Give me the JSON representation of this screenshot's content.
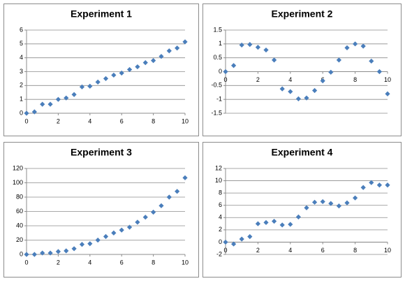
{
  "chart_data": [
    {
      "type": "scatter",
      "title": "Experiment 1",
      "color": "#4a7ebb",
      "grid": true,
      "x": [
        0,
        0.5,
        1,
        1.5,
        2,
        2.5,
        3,
        3.5,
        4,
        4.5,
        5,
        5.5,
        6,
        6.5,
        7,
        7.5,
        8,
        8.5,
        9,
        9.5,
        10
      ],
      "values": [
        0,
        0.1,
        0.65,
        0.65,
        1.0,
        1.1,
        1.35,
        1.9,
        1.95,
        2.25,
        2.5,
        2.75,
        2.9,
        3.15,
        3.35,
        3.65,
        3.8,
        4.1,
        4.5,
        4.7,
        5.15
      ],
      "xlim": [
        0,
        10
      ],
      "ylim": [
        0,
        6
      ],
      "xticks": [
        0,
        2,
        4,
        6,
        8,
        10
      ],
      "yticks": [
        0,
        1,
        2,
        3,
        4,
        5,
        6
      ]
    },
    {
      "type": "scatter",
      "title": "Experiment 2",
      "color": "#4a7ebb",
      "grid": true,
      "x": [
        0,
        0.5,
        1,
        1.5,
        2,
        2.5,
        3,
        3.5,
        4,
        4.5,
        5,
        5.5,
        6,
        6.5,
        7,
        7.5,
        8,
        8.5,
        9,
        9.5,
        10
      ],
      "values": [
        0,
        0.22,
        0.96,
        0.98,
        0.88,
        0.78,
        0.42,
        -0.62,
        -0.72,
        -0.98,
        -0.95,
        -0.68,
        -0.33,
        -0.02,
        0.42,
        0.86,
        1.0,
        0.92,
        0.38,
        0.0,
        -0.8
      ],
      "xlim": [
        0,
        10
      ],
      "ylim": [
        -1.5,
        1.5
      ],
      "xticks": [
        0,
        2,
        4,
        6,
        8,
        10
      ],
      "yticks": [
        -1.5,
        -1,
        -0.5,
        0,
        0.5,
        1,
        1.5
      ]
    },
    {
      "type": "scatter",
      "title": "Experiment 3",
      "color": "#4a7ebb",
      "grid": true,
      "x": [
        0,
        0.5,
        1,
        1.5,
        2,
        2.5,
        3,
        3.5,
        4,
        4.5,
        5,
        5.5,
        6,
        6.5,
        7,
        7.5,
        8,
        8.5,
        9,
        9.5,
        10
      ],
      "values": [
        0,
        0,
        2,
        2,
        4,
        5,
        8,
        14,
        15,
        20,
        25,
        30,
        34,
        38,
        45,
        52,
        59,
        68,
        80,
        88,
        107
      ],
      "xlim": [
        0,
        10
      ],
      "ylim": [
        0,
        120
      ],
      "xticks": [
        0,
        2,
        4,
        6,
        8,
        10
      ],
      "yticks": [
        0,
        20,
        40,
        60,
        80,
        100,
        120
      ]
    },
    {
      "type": "scatter",
      "title": "Experiment 4",
      "color": "#4a7ebb",
      "grid": true,
      "x": [
        0,
        0.5,
        1,
        1.5,
        2,
        2.5,
        3,
        3.5,
        4,
        4.5,
        5,
        5.5,
        6,
        6.5,
        7,
        7.5,
        8,
        8.5,
        9,
        9.5,
        10
      ],
      "values": [
        0,
        -0.3,
        0.5,
        0.9,
        3.0,
        3.2,
        3.4,
        2.8,
        2.9,
        4.1,
        5.6,
        6.5,
        6.6,
        6.3,
        5.9,
        6.4,
        7.2,
        8.9,
        9.7,
        9.3,
        9.3
      ],
      "xlim": [
        0,
        10
      ],
      "ylim": [
        -2,
        12
      ],
      "xticks": [
        0,
        2,
        4,
        6,
        8,
        10
      ],
      "yticks": [
        -2,
        0,
        2,
        4,
        6,
        8,
        10,
        12
      ]
    }
  ]
}
